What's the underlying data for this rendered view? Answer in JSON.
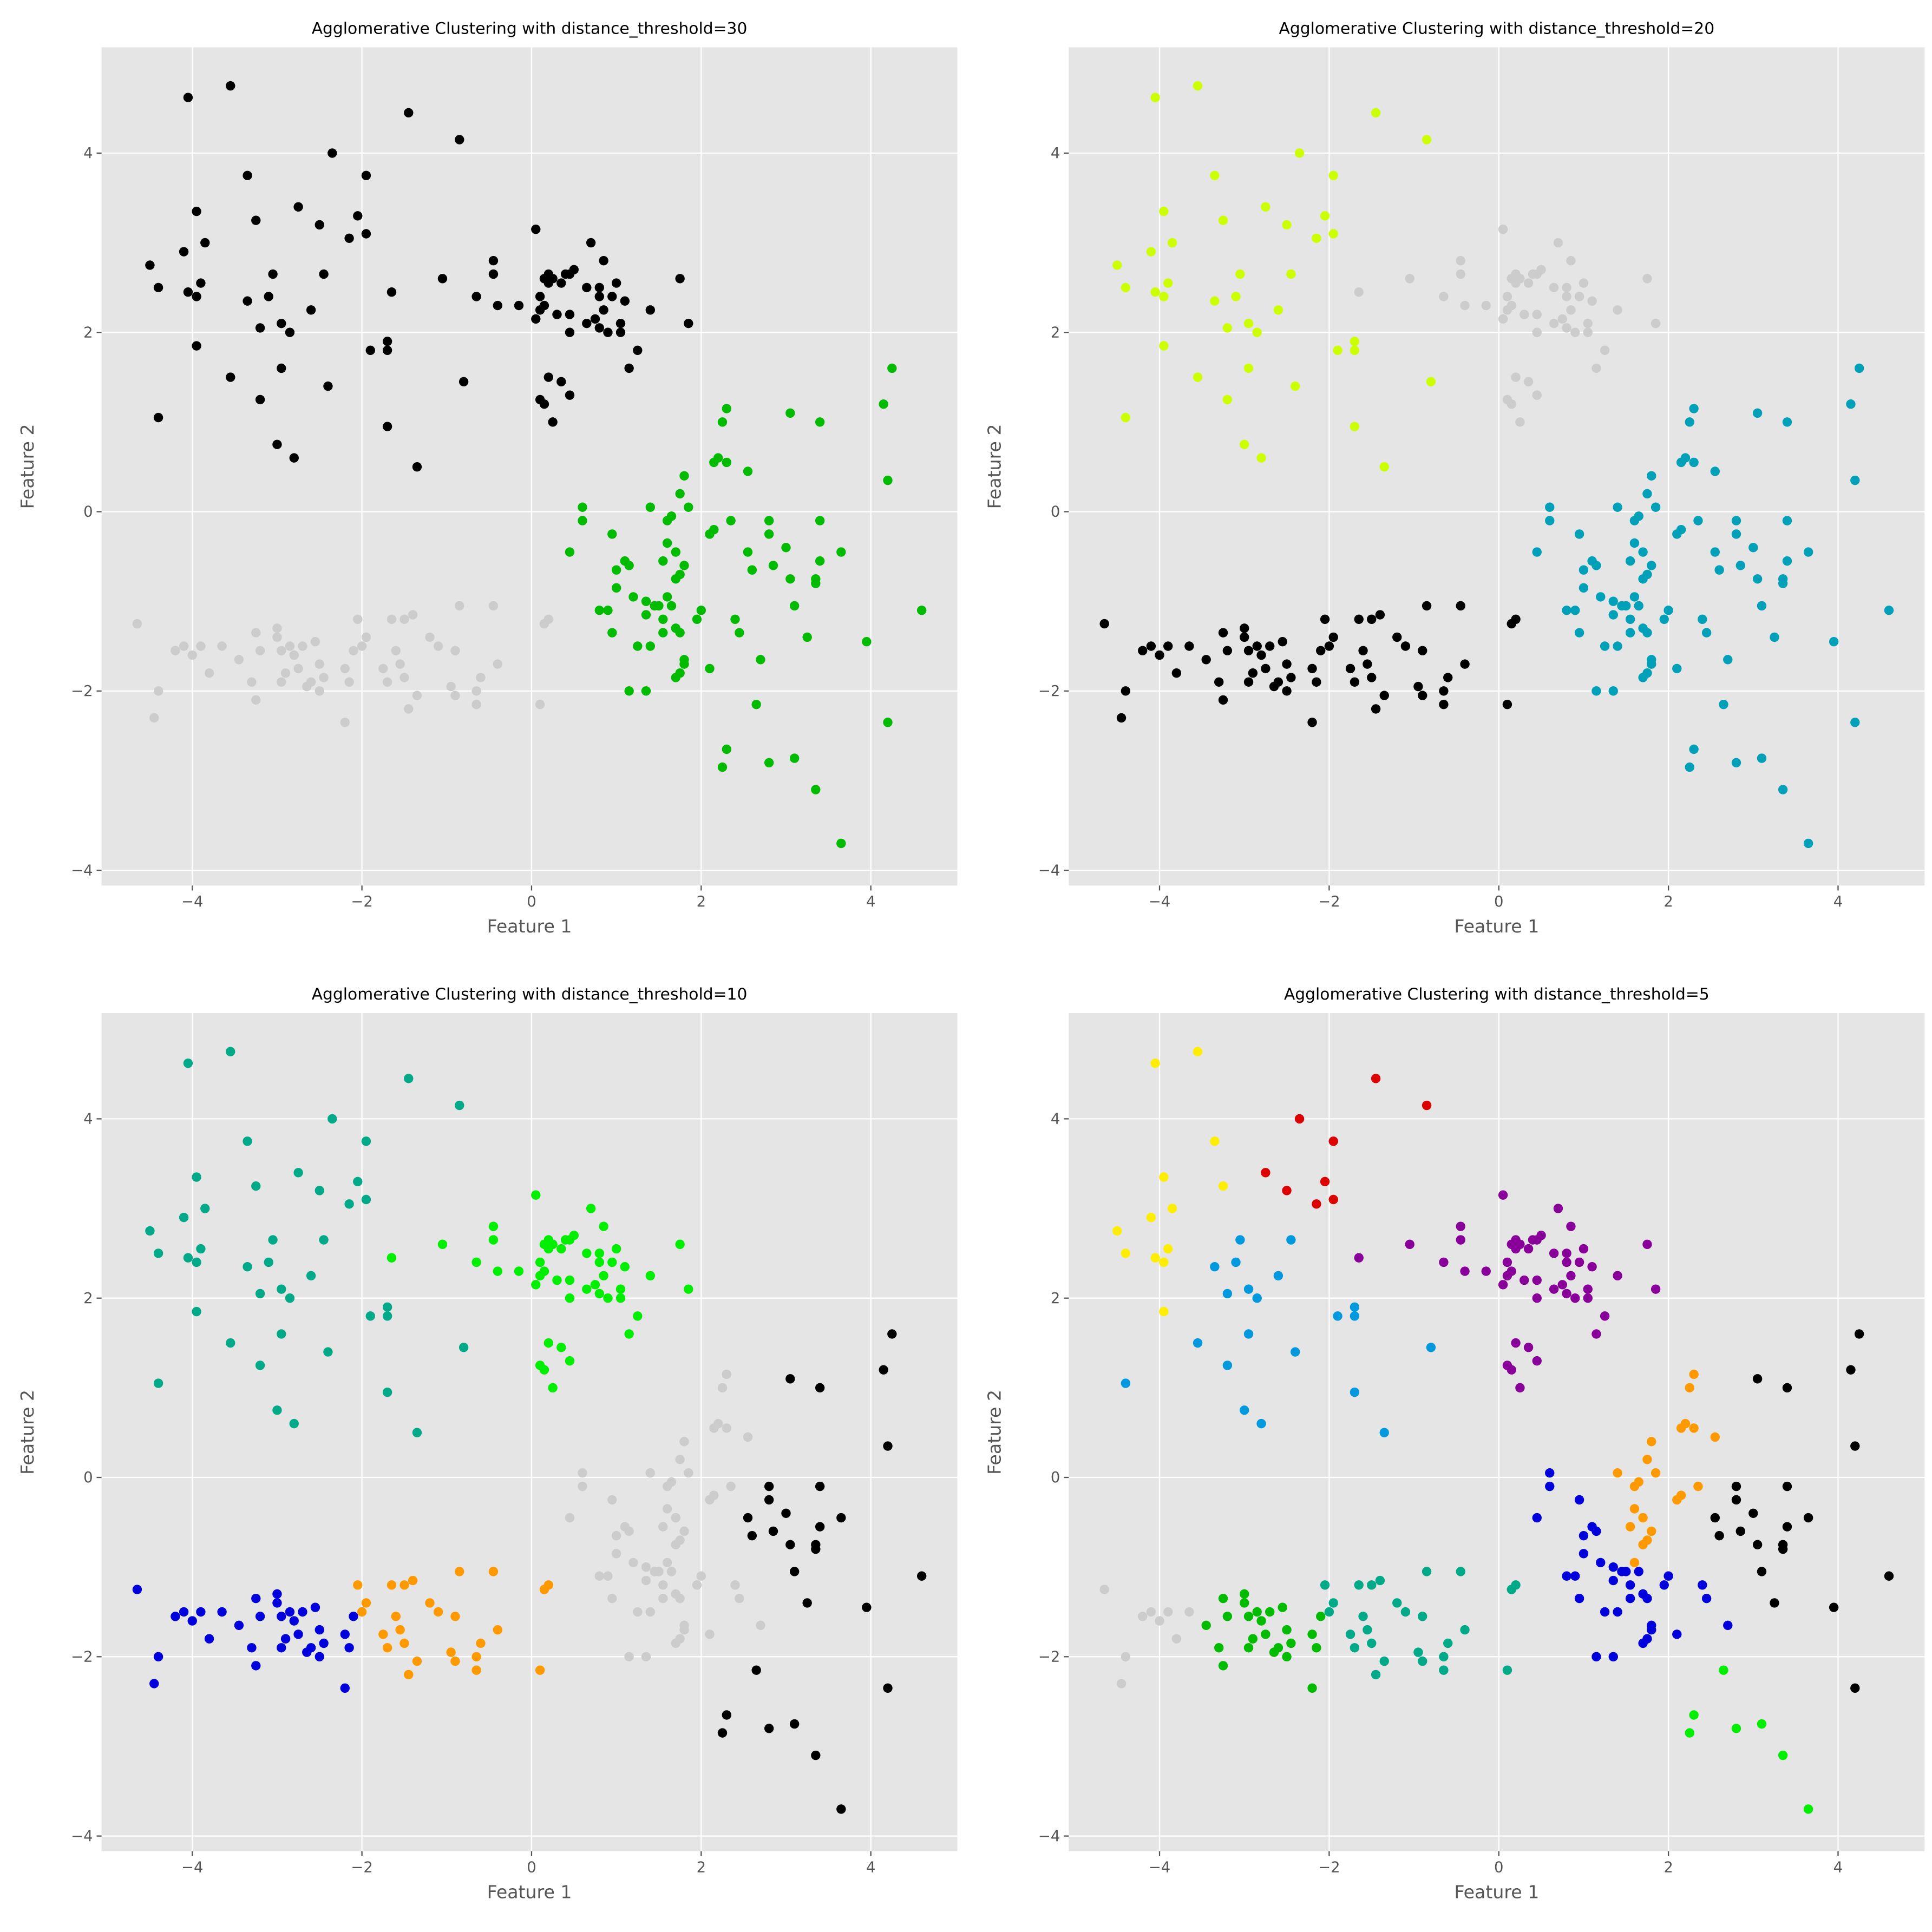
{
  "chart_data": {
    "type": "scatter",
    "grid": true,
    "xlim": [
      -5.07,
      5.02
    ],
    "ylim": [
      -4.17,
      5.18
    ],
    "xticks": [
      -4,
      -2,
      0,
      2,
      4
    ],
    "yticks": [
      -4,
      -2,
      0,
      2,
      4
    ],
    "xtick_labels": [
      "−4",
      "−2",
      "0",
      "2",
      "4"
    ],
    "ytick_labels": [
      "−4",
      "−2",
      "0",
      "2",
      "4"
    ],
    "xlabel": "Feature 1",
    "ylabel": "Feature 2",
    "points": [
      [
        -2.35,
        4.0,
        "R"
      ],
      [
        -2.75,
        3.4,
        "R"
      ],
      [
        -2.5,
        3.2,
        "R"
      ],
      [
        -2.15,
        3.05,
        "R"
      ],
      [
        -2.05,
        3.3,
        "R"
      ],
      [
        -1.95,
        3.75,
        "R"
      ],
      [
        -1.95,
        3.1,
        "R"
      ],
      [
        -1.45,
        4.45,
        "R"
      ],
      [
        -0.85,
        4.15,
        "R"
      ],
      [
        -4.5,
        2.75,
        "Y"
      ],
      [
        -4.4,
        2.5,
        "Y"
      ],
      [
        -4.05,
        4.62,
        "Y"
      ],
      [
        -4.1,
        2.9,
        "Y"
      ],
      [
        -4.05,
        2.45,
        "Y"
      ],
      [
        -3.95,
        2.4,
        "Y"
      ],
      [
        -3.95,
        3.35,
        "Y"
      ],
      [
        -3.9,
        2.55,
        "Y"
      ],
      [
        -3.85,
        3.0,
        "Y"
      ],
      [
        -3.95,
        1.85,
        "Y"
      ],
      [
        -3.55,
        4.75,
        "Y"
      ],
      [
        -3.35,
        3.75,
        "Y"
      ],
      [
        -3.25,
        3.25,
        "Y"
      ],
      [
        -4.4,
        1.05,
        "S"
      ],
      [
        -3.55,
        1.5,
        "S"
      ],
      [
        -3.35,
        2.35,
        "S"
      ],
      [
        -3.2,
        2.05,
        "S"
      ],
      [
        -3.2,
        1.25,
        "S"
      ],
      [
        -3.1,
        2.4,
        "S"
      ],
      [
        -3.05,
        2.65,
        "S"
      ],
      [
        -3.0,
        0.75,
        "S"
      ],
      [
        -2.95,
        2.1,
        "S"
      ],
      [
        -2.95,
        1.6,
        "S"
      ],
      [
        -2.85,
        2.0,
        "S"
      ],
      [
        -2.8,
        0.6,
        "S"
      ],
      [
        -2.6,
        2.25,
        "S"
      ],
      [
        -2.45,
        2.65,
        "S"
      ],
      [
        -2.4,
        1.4,
        "S"
      ],
      [
        -1.9,
        1.8,
        "S"
      ],
      [
        -1.7,
        1.8,
        "S"
      ],
      [
        -1.7,
        1.9,
        "S"
      ],
      [
        -1.7,
        0.95,
        "S"
      ],
      [
        -1.35,
        0.5,
        "S"
      ],
      [
        -0.8,
        1.45,
        "S"
      ],
      [
        -1.65,
        2.45,
        "P"
      ],
      [
        -1.05,
        2.6,
        "P"
      ],
      [
        -0.65,
        2.4,
        "P"
      ],
      [
        -0.45,
        2.8,
        "P"
      ],
      [
        -0.45,
        2.65,
        "P"
      ],
      [
        -0.4,
        2.3,
        "P"
      ],
      [
        -0.15,
        2.3,
        "P"
      ],
      [
        0.05,
        3.15,
        "P"
      ],
      [
        0.05,
        2.15,
        "P"
      ],
      [
        0.1,
        2.4,
        "P"
      ],
      [
        0.1,
        2.25,
        "P"
      ],
      [
        0.1,
        1.25,
        "P"
      ],
      [
        0.15,
        2.6,
        "P"
      ],
      [
        0.15,
        2.3,
        "P"
      ],
      [
        0.15,
        1.2,
        "P"
      ],
      [
        0.2,
        2.65,
        "P"
      ],
      [
        0.2,
        2.55,
        "P"
      ],
      [
        0.2,
        1.5,
        "P"
      ],
      [
        0.25,
        2.6,
        "P"
      ],
      [
        0.25,
        1.0,
        "P"
      ],
      [
        0.3,
        2.2,
        "P"
      ],
      [
        0.35,
        2.55,
        "P"
      ],
      [
        0.35,
        1.45,
        "P"
      ],
      [
        0.4,
        2.65,
        "P"
      ],
      [
        0.45,
        2.65,
        "P"
      ],
      [
        0.45,
        2.0,
        "P"
      ],
      [
        0.45,
        2.2,
        "P"
      ],
      [
        0.5,
        2.7,
        "P"
      ],
      [
        0.45,
        1.3,
        "P"
      ],
      [
        0.65,
        2.5,
        "P"
      ],
      [
        0.65,
        2.1,
        "P"
      ],
      [
        0.7,
        3.0,
        "P"
      ],
      [
        0.75,
        2.15,
        "P"
      ],
      [
        0.8,
        2.5,
        "P"
      ],
      [
        0.8,
        2.4,
        "P"
      ],
      [
        0.8,
        2.05,
        "P"
      ],
      [
        0.85,
        2.8,
        "P"
      ],
      [
        0.85,
        2.25,
        "P"
      ],
      [
        0.9,
        2.0,
        "P"
      ],
      [
        0.95,
        2.4,
        "P"
      ],
      [
        1.0,
        2.55,
        "P"
      ],
      [
        1.05,
        2.1,
        "P"
      ],
      [
        1.05,
        2.0,
        "P"
      ],
      [
        1.1,
        2.35,
        "P"
      ],
      [
        1.15,
        1.6,
        "P"
      ],
      [
        1.25,
        1.8,
        "P"
      ],
      [
        1.4,
        2.25,
        "P"
      ],
      [
        1.75,
        2.6,
        "P"
      ],
      [
        1.85,
        2.1,
        "P"
      ],
      [
        1.4,
        0.05,
        "O"
      ],
      [
        1.6,
        -0.1,
        "O"
      ],
      [
        1.65,
        -0.05,
        "O"
      ],
      [
        1.6,
        -0.35,
        "O"
      ],
      [
        1.7,
        -0.45,
        "O"
      ],
      [
        1.75,
        0.2,
        "O"
      ],
      [
        1.8,
        0.4,
        "O"
      ],
      [
        1.85,
        0.05,
        "O"
      ],
      [
        1.8,
        -0.6,
        "O"
      ],
      [
        1.75,
        -0.7,
        "O"
      ],
      [
        1.7,
        -0.75,
        "O"
      ],
      [
        1.6,
        -0.95,
        "O"
      ],
      [
        1.55,
        -0.55,
        "O"
      ],
      [
        2.1,
        -0.25,
        "O"
      ],
      [
        2.15,
        -0.2,
        "O"
      ],
      [
        2.15,
        0.55,
        "O"
      ],
      [
        2.2,
        0.6,
        "O"
      ],
      [
        2.25,
        1.0,
        "O"
      ],
      [
        2.3,
        1.15,
        "O"
      ],
      [
        2.3,
        0.55,
        "O"
      ],
      [
        2.55,
        0.45,
        "O"
      ],
      [
        2.35,
        -0.1,
        "O"
      ],
      [
        0.6,
        0.05,
        "B"
      ],
      [
        0.6,
        -0.1,
        "B"
      ],
      [
        0.45,
        -0.45,
        "B"
      ],
      [
        0.95,
        -0.25,
        "B"
      ],
      [
        1.0,
        -0.65,
        "B"
      ],
      [
        1.0,
        -0.85,
        "B"
      ],
      [
        0.9,
        -1.1,
        "B"
      ],
      [
        0.8,
        -1.1,
        "B"
      ],
      [
        0.95,
        -1.35,
        "B"
      ],
      [
        1.1,
        -0.55,
        "B"
      ],
      [
        1.15,
        -0.6,
        "B"
      ],
      [
        1.2,
        -0.95,
        "B"
      ],
      [
        1.15,
        -2.0,
        "B"
      ],
      [
        1.25,
        -1.5,
        "B"
      ],
      [
        1.35,
        -1.0,
        "B"
      ],
      [
        1.35,
        -1.15,
        "B"
      ],
      [
        1.4,
        -1.5,
        "B"
      ],
      [
        1.45,
        -1.05,
        "B"
      ],
      [
        1.5,
        -1.05,
        "B"
      ],
      [
        1.55,
        -1.2,
        "B"
      ],
      [
        1.55,
        -1.35,
        "B"
      ],
      [
        1.65,
        -1.05,
        "B"
      ],
      [
        1.7,
        -1.3,
        "B"
      ],
      [
        1.75,
        -1.35,
        "B"
      ],
      [
        1.8,
        -1.65,
        "B"
      ],
      [
        1.8,
        -1.7,
        "B"
      ],
      [
        1.7,
        -1.85,
        "B"
      ],
      [
        1.75,
        -1.8,
        "B"
      ],
      [
        1.95,
        -1.2,
        "B"
      ],
      [
        2.0,
        -1.1,
        "B"
      ],
      [
        2.1,
        -1.75,
        "B"
      ],
      [
        2.4,
        -1.2,
        "B"
      ],
      [
        2.45,
        -1.35,
        "B"
      ],
      [
        2.7,
        -1.65,
        "B"
      ],
      [
        1.35,
        -2.0,
        "B"
      ],
      [
        2.55,
        -0.45,
        "K"
      ],
      [
        2.6,
        -0.65,
        "K"
      ],
      [
        2.8,
        -0.1,
        "K"
      ],
      [
        2.8,
        -0.25,
        "K"
      ],
      [
        2.85,
        -0.6,
        "K"
      ],
      [
        3.0,
        -0.4,
        "K"
      ],
      [
        3.05,
        -0.75,
        "K"
      ],
      [
        3.1,
        -1.05,
        "K"
      ],
      [
        3.05,
        1.1,
        "K"
      ],
      [
        3.25,
        -1.4,
        "K"
      ],
      [
        3.4,
        -0.1,
        "K"
      ],
      [
        3.4,
        -0.55,
        "K"
      ],
      [
        3.35,
        -0.75,
        "K"
      ],
      [
        3.35,
        -0.8,
        "K"
      ],
      [
        3.65,
        -0.45,
        "K"
      ],
      [
        3.95,
        -1.45,
        "K"
      ],
      [
        4.15,
        1.2,
        "K"
      ],
      [
        4.2,
        0.35,
        "K"
      ],
      [
        4.25,
        1.6,
        "K"
      ],
      [
        4.6,
        -1.1,
        "K"
      ],
      [
        4.2,
        -2.35,
        "K"
      ],
      [
        3.4,
        1.0,
        "K"
      ],
      [
        2.25,
        -2.85,
        "L"
      ],
      [
        2.3,
        -2.65,
        "L"
      ],
      [
        2.65,
        -2.15,
        "L"
      ],
      [
        2.8,
        -2.8,
        "L"
      ],
      [
        3.1,
        -2.75,
        "L"
      ],
      [
        3.35,
        -3.1,
        "L"
      ],
      [
        3.65,
        -3.7,
        "L"
      ],
      [
        -4.65,
        -1.25,
        "G"
      ],
      [
        -4.45,
        -2.3,
        "G"
      ],
      [
        -4.4,
        -2.0,
        "G"
      ],
      [
        -4.2,
        -1.55,
        "G"
      ],
      [
        -4.1,
        -1.5,
        "G"
      ],
      [
        -4.0,
        -1.6,
        "G"
      ],
      [
        -3.9,
        -1.5,
        "G"
      ],
      [
        -3.8,
        -1.8,
        "G"
      ],
      [
        -3.65,
        -1.5,
        "G"
      ],
      [
        -3.45,
        -1.65,
        "N"
      ],
      [
        -3.3,
        -1.9,
        "N"
      ],
      [
        -3.25,
        -2.1,
        "N"
      ],
      [
        -3.25,
        -1.35,
        "N"
      ],
      [
        -3.2,
        -1.55,
        "N"
      ],
      [
        -3.0,
        -1.3,
        "N"
      ],
      [
        -3.0,
        -1.4,
        "N"
      ],
      [
        -2.95,
        -1.9,
        "N"
      ],
      [
        -2.95,
        -1.55,
        "N"
      ],
      [
        -2.9,
        -1.8,
        "N"
      ],
      [
        -2.85,
        -1.5,
        "N"
      ],
      [
        -2.8,
        -1.6,
        "N"
      ],
      [
        -2.75,
        -1.75,
        "N"
      ],
      [
        -2.7,
        -1.5,
        "N"
      ],
      [
        -2.65,
        -1.95,
        "N"
      ],
      [
        -2.6,
        -1.9,
        "N"
      ],
      [
        -2.55,
        -1.45,
        "N"
      ],
      [
        -2.5,
        -1.7,
        "N"
      ],
      [
        -2.5,
        -2.0,
        "N"
      ],
      [
        -2.45,
        -1.85,
        "N"
      ],
      [
        -2.2,
        -2.35,
        "N"
      ],
      [
        -2.2,
        -1.75,
        "N"
      ],
      [
        -2.15,
        -1.9,
        "N"
      ],
      [
        -2.1,
        -1.55,
        "N"
      ],
      [
        -2.05,
        -1.2,
        "T"
      ],
      [
        -2.0,
        -1.5,
        "T"
      ],
      [
        -1.95,
        -1.4,
        "T"
      ],
      [
        -1.75,
        -1.75,
        "T"
      ],
      [
        -1.7,
        -1.9,
        "T"
      ],
      [
        -1.65,
        -1.2,
        "T"
      ],
      [
        -1.6,
        -1.55,
        "T"
      ],
      [
        -1.55,
        -1.7,
        "T"
      ],
      [
        -1.5,
        -1.2,
        "T"
      ],
      [
        -1.5,
        -1.85,
        "T"
      ],
      [
        -1.45,
        -2.2,
        "T"
      ],
      [
        -1.4,
        -1.15,
        "T"
      ],
      [
        -1.35,
        -2.05,
        "T"
      ],
      [
        -1.2,
        -1.4,
        "T"
      ],
      [
        -1.1,
        -1.5,
        "T"
      ],
      [
        -0.95,
        -1.95,
        "T"
      ],
      [
        -0.9,
        -2.05,
        "T"
      ],
      [
        -0.85,
        -1.05,
        "T"
      ],
      [
        -0.9,
        -1.55,
        "T"
      ],
      [
        -0.65,
        -2.0,
        "T"
      ],
      [
        -0.65,
        -2.15,
        "T"
      ],
      [
        -0.6,
        -1.85,
        "T"
      ],
      [
        -0.45,
        -1.05,
        "T"
      ],
      [
        -0.4,
        -1.7,
        "T"
      ],
      [
        0.1,
        -2.15,
        "T"
      ],
      [
        0.15,
        -1.25,
        "T"
      ],
      [
        0.2,
        -1.2,
        "T"
      ]
    ],
    "subplots": [
      {
        "title": "Agglomerative Clustering with distance_threshold=30",
        "cluster_colors": {
          "R": "#000000",
          "Y": "#000000",
          "S": "#000000",
          "P": "#000000",
          "O": "#00bb00",
          "B": "#00bb00",
          "K": "#00bb00",
          "L": "#00bb00",
          "G": "#cccccc",
          "N": "#cccccc",
          "T": "#cccccc"
        }
      },
      {
        "title": "Agglomerative Clustering with distance_threshold=20",
        "cluster_colors": {
          "R": "#ccff00",
          "Y": "#ccff00",
          "S": "#ccff00",
          "P": "#cccccc",
          "O": "#00a0b8",
          "B": "#00a0b8",
          "K": "#00a0b8",
          "L": "#00a0b8",
          "G": "#000000",
          "N": "#000000",
          "T": "#000000"
        }
      },
      {
        "title": "Agglomerative Clustering with distance_threshold=10",
        "cluster_colors": {
          "R": "#00aa88",
          "Y": "#00aa88",
          "S": "#00aa88",
          "P": "#00ee00",
          "O": "#cccccc",
          "B": "#cccccc",
          "K": "#000000",
          "L": "#000000",
          "G": "#0000dd",
          "N": "#0000dd",
          "T": "#ff9900"
        }
      },
      {
        "title": "Agglomerative Clustering with distance_threshold=5",
        "cluster_colors": {
          "R": "#dd0000",
          "Y": "#ffee00",
          "S": "#0099dd",
          "P": "#880099",
          "O": "#ff9900",
          "B": "#0000dd",
          "K": "#000000",
          "L": "#00ee00",
          "G": "#cccccc",
          "N": "#00bb00",
          "T": "#00aa88"
        }
      }
    ],
    "background_color": "#e5e5e5",
    "grid_color": "#ffffff"
  }
}
